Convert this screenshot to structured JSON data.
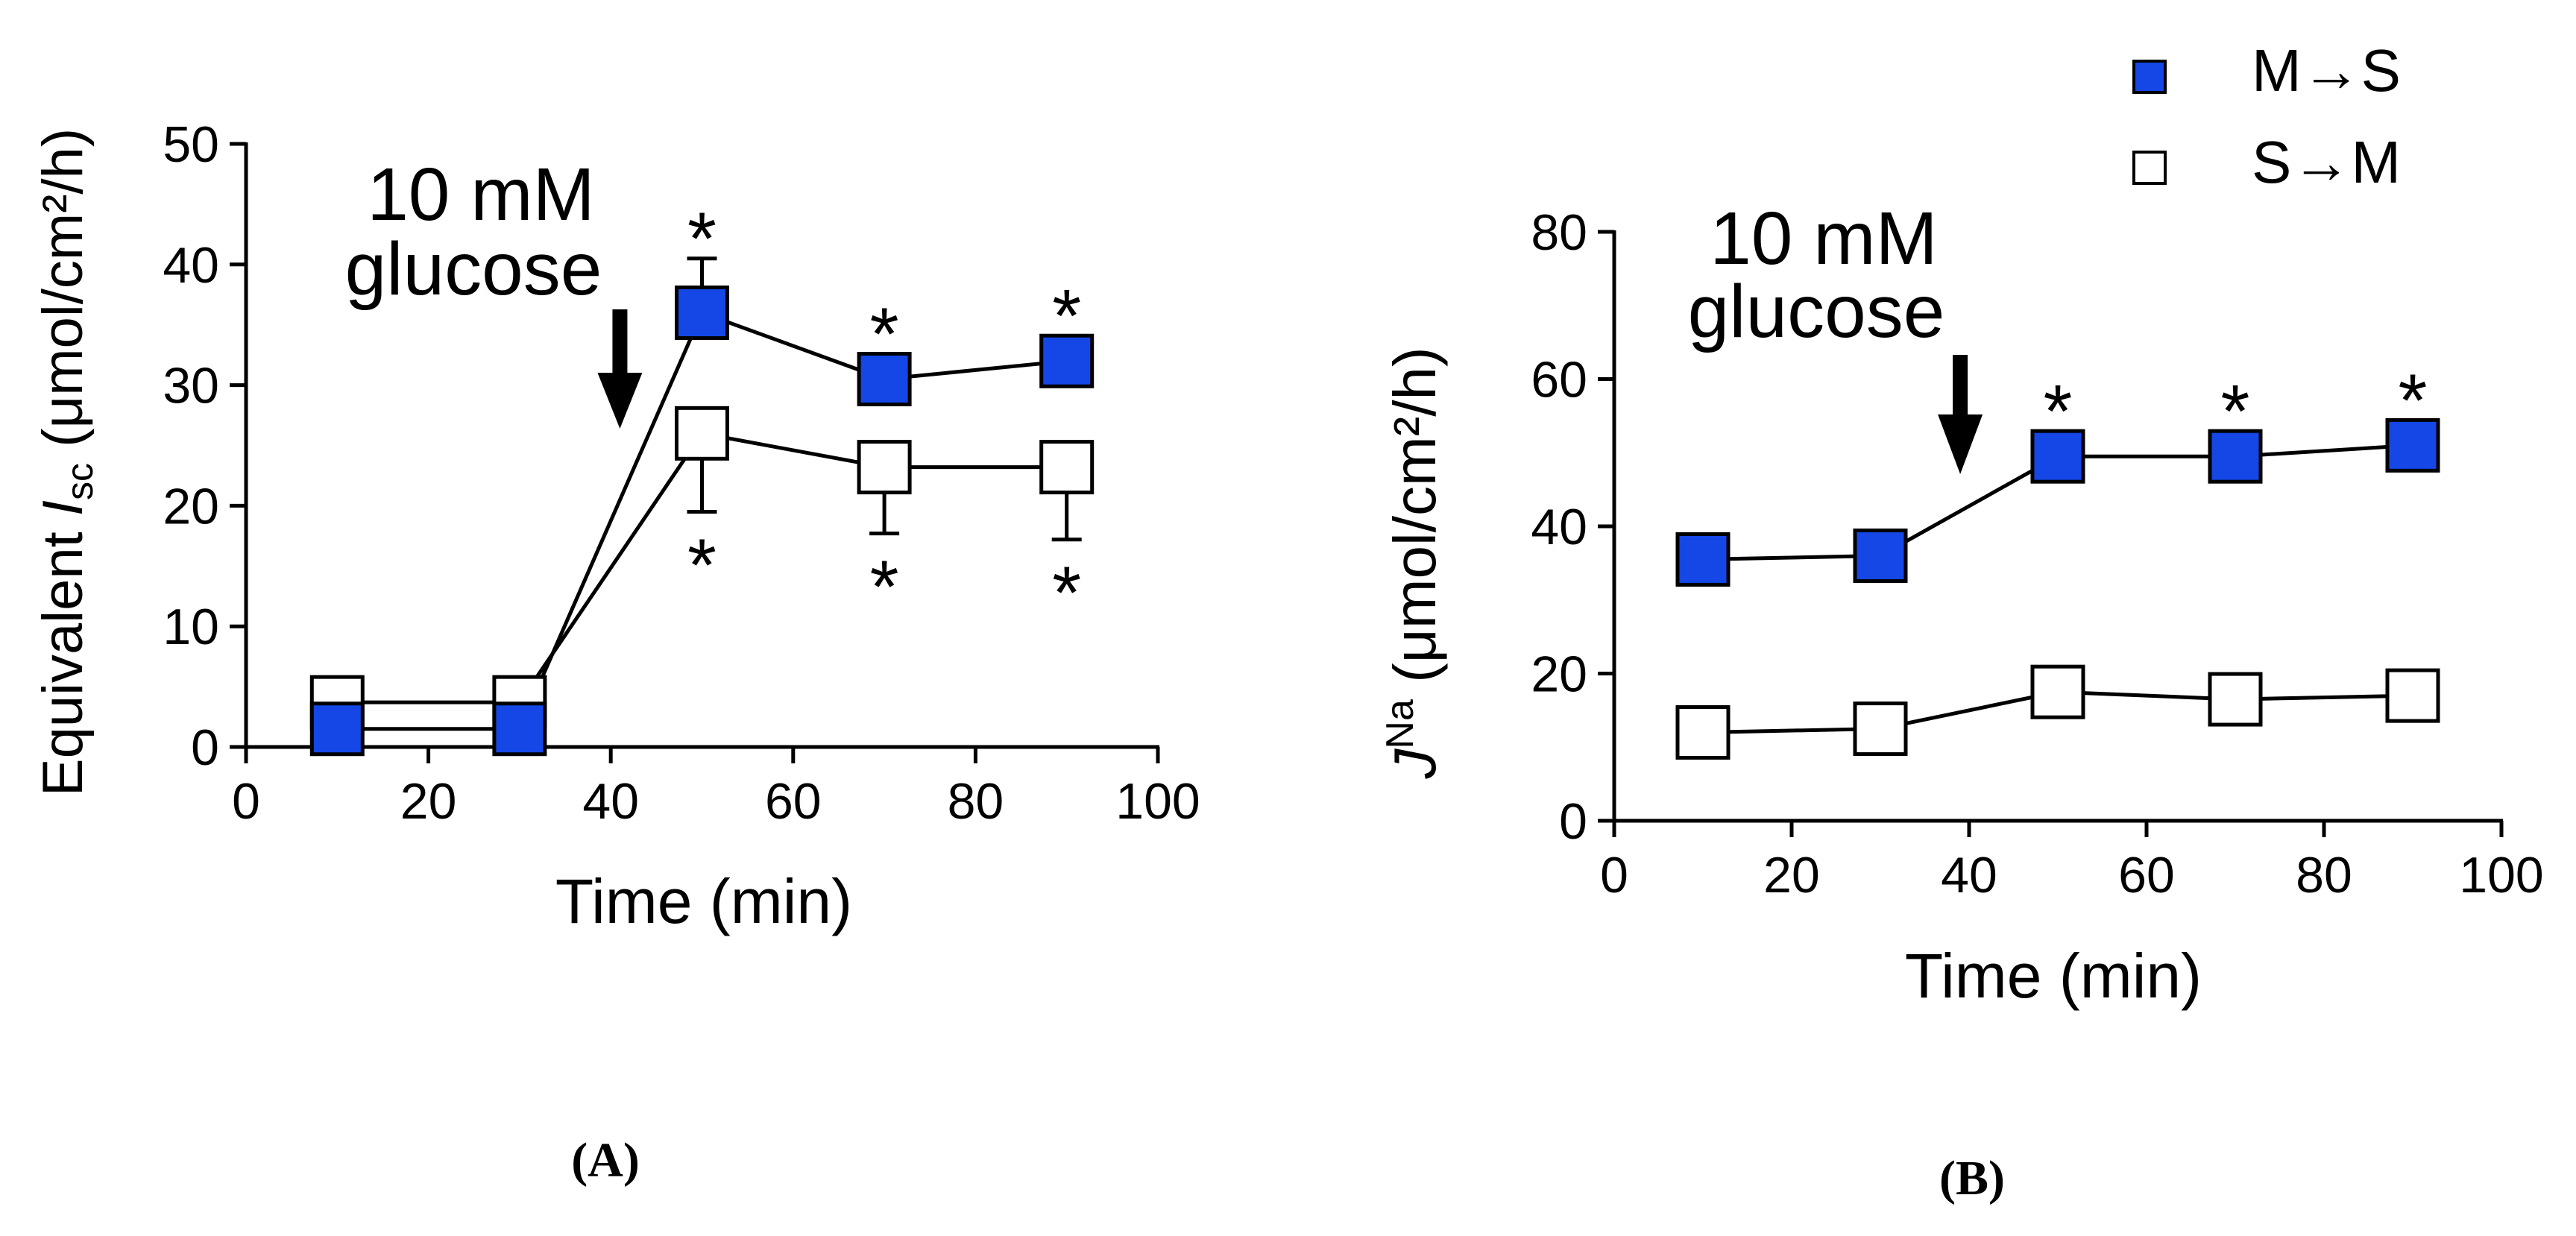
{
  "chart_data": [
    {
      "type": "line",
      "panel_label": "(A)",
      "ylabel_prefix": "Equivalent ",
      "ylabel_italic": "I",
      "ylabel_sub": "sc",
      "ylabel_suffix": " (μmol/cm²/h)",
      "xlabel": "Time (min)",
      "xlim": [
        0,
        100
      ],
      "ylim": [
        0,
        50
      ],
      "xticks": [
        0,
        20,
        40,
        60,
        80,
        100
      ],
      "yticks": [
        0,
        10,
        20,
        30,
        40,
        50
      ],
      "annotation": {
        "line1": "10 mM",
        "line2": "glucose",
        "arrow_x": 41
      },
      "x": [
        10,
        30,
        50,
        70,
        90
      ],
      "series": [
        {
          "name": "M→S",
          "fill": "#1447E6",
          "values": [
            1.5,
            1.5,
            36,
            30.5,
            32
          ],
          "errors": [
            0,
            0,
            4.5,
            0,
            0
          ],
          "stars": [
            false,
            false,
            true,
            true,
            true
          ],
          "star_position": "above"
        },
        {
          "name": "S→M",
          "fill": "#FFFFFF",
          "values": [
            3.7,
            3.7,
            26,
            23.2,
            23.2
          ],
          "errors": [
            0,
            0,
            6.5,
            5.5,
            6
          ],
          "stars": [
            false,
            false,
            true,
            true,
            true
          ],
          "star_position": "below"
        }
      ],
      "star_symbol": "*"
    },
    {
      "type": "line",
      "panel_label": "(B)",
      "ylabel_italic": "J",
      "ylabel_sup": "Na",
      "ylabel_suffix": " (μmol/cm²/h)",
      "xlabel": "Time (min)",
      "xlim": [
        0,
        100
      ],
      "ylim": [
        0,
        80
      ],
      "xticks": [
        0,
        20,
        40,
        60,
        80,
        100
      ],
      "yticks": [
        0,
        20,
        40,
        60,
        80
      ],
      "annotation": {
        "line1": "10 mM",
        "line2": "glucose",
        "arrow_x": 39
      },
      "x": [
        10,
        30,
        50,
        70,
        90
      ],
      "series": [
        {
          "name": "M→S",
          "fill": "#1447E6",
          "values": [
            35.5,
            36,
            49.5,
            49.5,
            51
          ],
          "errors": [
            0,
            0,
            0,
            0,
            0
          ],
          "stars": [
            false,
            false,
            true,
            true,
            true
          ],
          "star_position": "above"
        },
        {
          "name": "S→M",
          "fill": "#FFFFFF",
          "values": [
            12,
            12.5,
            17.5,
            16.5,
            17
          ],
          "errors": [
            0,
            0,
            0,
            0,
            0
          ],
          "stars": [
            false,
            false,
            false,
            false,
            false
          ],
          "star_position": "below"
        }
      ],
      "star_symbol": "*"
    }
  ],
  "legend": {
    "position": "top-right",
    "items": [
      {
        "label": "M→S",
        "fill": "#1447E6"
      },
      {
        "label": "S→M",
        "fill": "#FFFFFF"
      }
    ]
  }
}
